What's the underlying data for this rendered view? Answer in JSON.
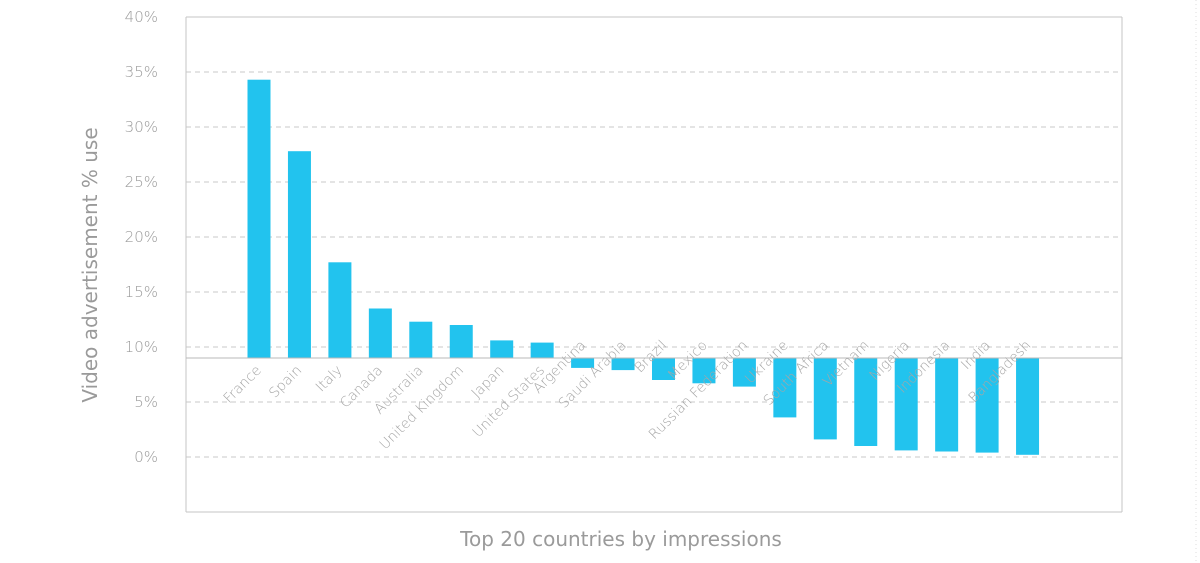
{
  "chart_data": {
    "type": "bar",
    "title": "",
    "xlabel": "Top 20 countries by impressions",
    "ylabel": "Video advertisement % use",
    "ylim": [
      -5,
      40
    ],
    "baseline": 9,
    "yticks": [
      0,
      5,
      10,
      15,
      20,
      25,
      30,
      35,
      40
    ],
    "ytick_labels": [
      "0%",
      "5%",
      "10%",
      "15%",
      "20%",
      "25%",
      "30%",
      "35%",
      "40%"
    ],
    "grid": true,
    "categories": [
      "France",
      "Spain",
      "Italy",
      "Canada",
      "Australia",
      "United Kingdom",
      "Japan",
      "United States",
      "Argentina",
      "Saudi Arabia",
      "Brazil",
      "Mexico",
      "Russian Federation",
      "Ukraine",
      "South Africa",
      "Vietnam",
      "Nigeria",
      "Indonesia",
      "India",
      "Bangladesh"
    ],
    "values": [
      34.3,
      27.8,
      17.7,
      13.5,
      12.3,
      12.0,
      10.6,
      10.4,
      8.1,
      7.9,
      7.0,
      6.7,
      6.4,
      3.6,
      1.6,
      1.0,
      0.6,
      0.5,
      0.4,
      0.2
    ],
    "bar_color": "#22c3ee"
  }
}
